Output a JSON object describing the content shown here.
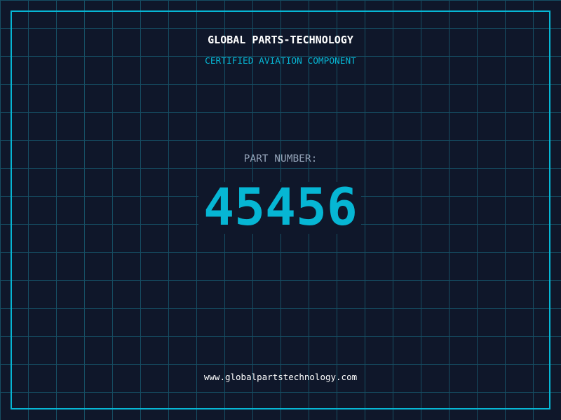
{
  "header": {
    "title": "GLOBAL PARTS-TECHNOLOGY",
    "subtitle": "CERTIFIED AVIATION COMPONENT"
  },
  "part": {
    "label": "PART NUMBER:",
    "number": "45456"
  },
  "footer": {
    "url": "www.globalpartstechnology.com"
  },
  "colors": {
    "background": "#0f172a",
    "accent": "#06b6d4",
    "grid": "#164e63",
    "label": "#94a3b8"
  }
}
